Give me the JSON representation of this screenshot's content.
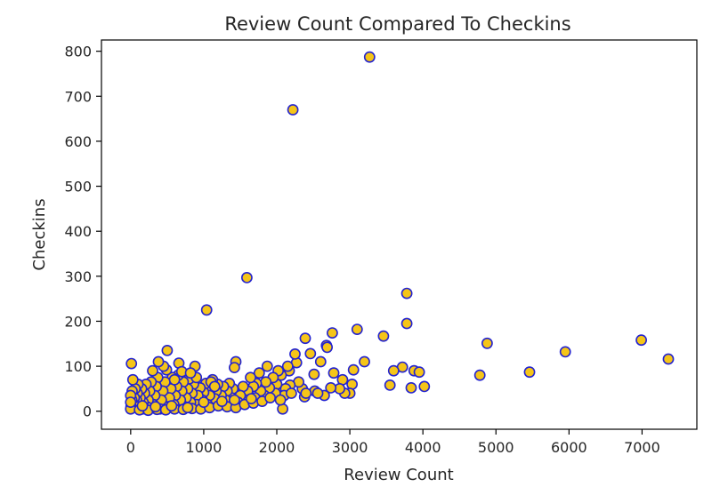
{
  "chart_data": {
    "type": "scatter",
    "title": "Review Count Compared To Checkins",
    "xlabel": "Review Count",
    "ylabel": "Checkins",
    "xlim": [
      -400,
      7750
    ],
    "ylim": [
      -40,
      825
    ],
    "xticks": [
      0,
      1000,
      2000,
      3000,
      4000,
      5000,
      6000,
      7000
    ],
    "yticks": [
      0,
      100,
      200,
      300,
      400,
      500,
      600,
      700,
      800
    ],
    "grid": false,
    "legend": "none",
    "marker_fill": "#f5c518",
    "marker_edge": "#2323d0",
    "points": [
      [
        3270,
        787
      ],
      [
        2220,
        670
      ],
      [
        1590,
        297
      ],
      [
        1040,
        225
      ],
      [
        3780,
        262
      ],
      [
        3780,
        195
      ],
      [
        4880,
        151
      ],
      [
        6990,
        158
      ],
      [
        7360,
        116
      ],
      [
        5950,
        132
      ],
      [
        5460,
        87
      ],
      [
        4780,
        80
      ],
      [
        3460,
        167
      ],
      [
        3100,
        182
      ],
      [
        2760,
        174
      ],
      [
        2390,
        162
      ],
      [
        2680,
        146
      ],
      [
        2690,
        142
      ],
      [
        3200,
        110
      ],
      [
        3880,
        90
      ],
      [
        3720,
        98
      ],
      [
        3950,
        87
      ],
      [
        3600,
        90
      ],
      [
        3550,
        58
      ],
      [
        3840,
        52
      ],
      [
        4020,
        55
      ],
      [
        3030,
        60
      ],
      [
        3000,
        40
      ],
      [
        3050,
        92
      ],
      [
        2900,
        70
      ],
      [
        2930,
        40
      ],
      [
        2860,
        50
      ],
      [
        2740,
        52
      ],
      [
        2780,
        85
      ],
      [
        2650,
        35
      ],
      [
        2600,
        110
      ],
      [
        2520,
        45
      ],
      [
        2510,
        82
      ],
      [
        2460,
        128
      ],
      [
        2380,
        32
      ],
      [
        2350,
        50
      ],
      [
        2300,
        65
      ],
      [
        2270,
        108
      ],
      [
        2250,
        127
      ],
      [
        2180,
        58
      ],
      [
        2170,
        90
      ],
      [
        2150,
        100
      ],
      [
        2120,
        50
      ],
      [
        2100,
        35
      ],
      [
        2080,
        5
      ],
      [
        2060,
        80
      ],
      [
        2020,
        90
      ],
      [
        2000,
        60
      ],
      [
        1980,
        40
      ],
      [
        1950,
        75
      ],
      [
        1900,
        52
      ],
      [
        1870,
        100
      ],
      [
        1850,
        65
      ],
      [
        1830,
        35
      ],
      [
        1780,
        45
      ],
      [
        1760,
        85
      ],
      [
        1720,
        62
      ],
      [
        1700,
        30
      ],
      [
        1680,
        55
      ],
      [
        1640,
        75
      ],
      [
        1600,
        45
      ],
      [
        1580,
        25
      ],
      [
        1540,
        55
      ],
      [
        1500,
        35
      ],
      [
        1470,
        20
      ],
      [
        1440,
        110
      ],
      [
        1420,
        97
      ],
      [
        1400,
        50
      ],
      [
        1380,
        30
      ],
      [
        1350,
        62
      ],
      [
        1320,
        45
      ],
      [
        1300,
        25
      ],
      [
        1270,
        55
      ],
      [
        1240,
        35
      ],
      [
        1210,
        15
      ],
      [
        1190,
        60
      ],
      [
        1170,
        45
      ],
      [
        1150,
        28
      ],
      [
        1120,
        70
      ],
      [
        1100,
        50
      ],
      [
        1080,
        35
      ],
      [
        1050,
        15
      ],
      [
        1030,
        62
      ],
      [
        1000,
        42
      ],
      [
        980,
        25
      ],
      [
        950,
        52
      ],
      [
        920,
        35
      ],
      [
        900,
        15
      ],
      [
        880,
        100
      ],
      [
        860,
        60
      ],
      [
        840,
        40
      ],
      [
        820,
        20
      ],
      [
        800,
        72
      ],
      [
        780,
        50
      ],
      [
        760,
        30
      ],
      [
        740,
        10
      ],
      [
        720,
        65
      ],
      [
        700,
        45
      ],
      [
        680,
        25
      ],
      [
        660,
        107
      ],
      [
        650,
        80
      ],
      [
        630,
        55
      ],
      [
        610,
        35
      ],
      [
        590,
        15
      ],
      [
        570,
        75
      ],
      [
        550,
        50
      ],
      [
        530,
        30
      ],
      [
        510,
        10
      ],
      [
        500,
        135
      ],
      [
        490,
        92
      ],
      [
        470,
        65
      ],
      [
        450,
        100
      ],
      [
        440,
        45
      ],
      [
        420,
        25
      ],
      [
        400,
        5
      ],
      [
        380,
        110
      ],
      [
        370,
        75
      ],
      [
        350,
        55
      ],
      [
        330,
        35
      ],
      [
        310,
        15
      ],
      [
        300,
        90
      ],
      [
        280,
        65
      ],
      [
        260,
        45
      ],
      [
        240,
        25
      ],
      [
        220,
        10
      ],
      [
        210,
        60
      ],
      [
        190,
        40
      ],
      [
        170,
        20
      ],
      [
        160,
        5
      ],
      [
        150,
        50
      ],
      [
        130,
        30
      ],
      [
        110,
        15
      ],
      [
        100,
        60
      ],
      [
        90,
        40
      ],
      [
        80,
        25
      ],
      [
        70,
        10
      ],
      [
        60,
        50
      ],
      [
        50,
        30
      ],
      [
        40,
        15
      ],
      [
        30,
        70
      ],
      [
        20,
        45
      ],
      [
        15,
        25
      ],
      [
        10,
        106
      ],
      [
        5,
        10
      ],
      [
        0,
        5
      ],
      [
        0,
        35
      ],
      [
        0,
        20
      ],
      [
        120,
        3
      ],
      [
        240,
        2
      ],
      [
        360,
        4
      ],
      [
        480,
        3
      ],
      [
        600,
        5
      ],
      [
        720,
        4
      ],
      [
        840,
        6
      ],
      [
        960,
        5
      ],
      [
        1080,
        8
      ],
      [
        1200,
        12
      ],
      [
        1320,
        10
      ],
      [
        1440,
        8
      ],
      [
        1560,
        15
      ],
      [
        1680,
        18
      ],
      [
        160,
        12
      ],
      [
        340,
        10
      ],
      [
        560,
        12
      ],
      [
        780,
        8
      ],
      [
        1000,
        20
      ],
      [
        1250,
        22
      ],
      [
        1420,
        25
      ],
      [
        1650,
        28
      ],
      [
        1800,
        22
      ],
      [
        1910,
        30
      ],
      [
        2050,
        25
      ],
      [
        2200,
        40
      ],
      [
        2400,
        40
      ],
      [
        2560,
        40
      ],
      [
        700,
        88
      ],
      [
        900,
        75
      ],
      [
        1100,
        65
      ],
      [
        1150,
        55
      ],
      [
        600,
        70
      ],
      [
        820,
        85
      ]
    ]
  }
}
